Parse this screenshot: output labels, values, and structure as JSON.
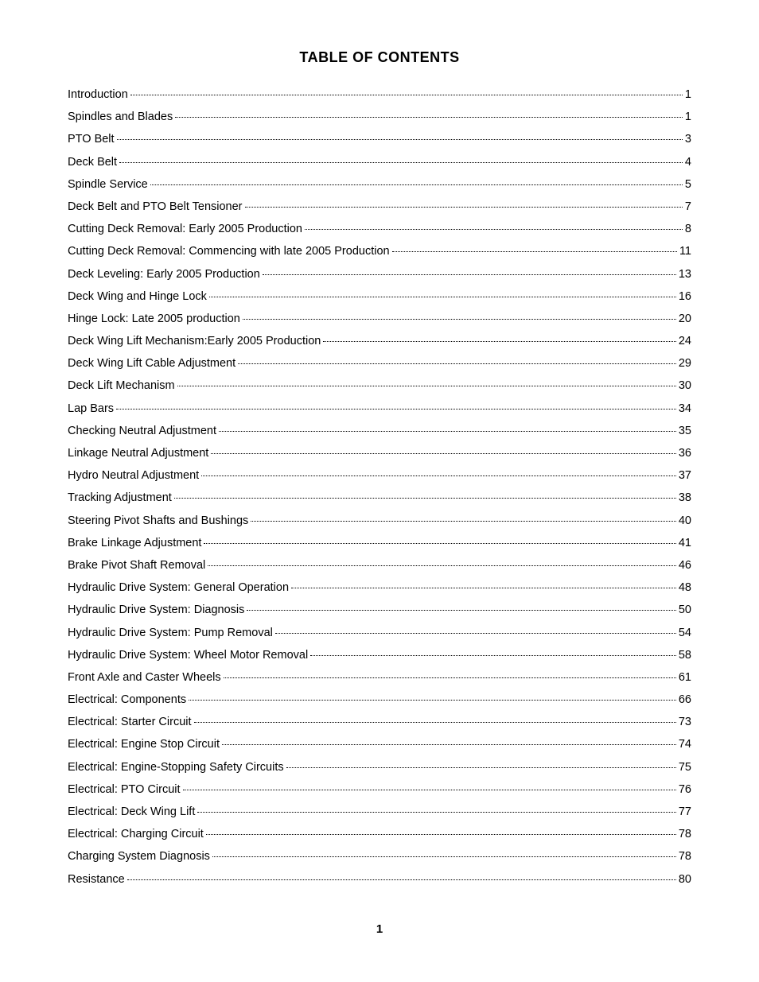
{
  "title": "TABLE OF CONTENTS",
  "page_number": "1",
  "toc": [
    {
      "label": "Introduction",
      "page": "1"
    },
    {
      "label": "Spindles and Blades",
      "page": "1"
    },
    {
      "label": "PTO Belt",
      "page": "3"
    },
    {
      "label": "Deck Belt",
      "page": "4"
    },
    {
      "label": "Spindle Service",
      "page": "5"
    },
    {
      "label": "Deck Belt and PTO Belt Tensioner",
      "page": "7"
    },
    {
      "label": "Cutting Deck Removal: Early 2005 Production",
      "page": "8"
    },
    {
      "label": "Cutting Deck Removal: Commencing with late 2005 Production",
      "page": "11"
    },
    {
      "label": "Deck Leveling: Early 2005 Production",
      "page": "13"
    },
    {
      "label": "Deck Wing and Hinge Lock",
      "page": "16"
    },
    {
      "label": "Hinge Lock: Late 2005 production",
      "page": "20"
    },
    {
      "label": "Deck Wing Lift Mechanism:Early 2005 Production",
      "page": "24"
    },
    {
      "label": "Deck Wing Lift Cable Adjustment",
      "page": "29"
    },
    {
      "label": "Deck Lift Mechanism",
      "page": "30"
    },
    {
      "label": "Lap Bars",
      "page": "34"
    },
    {
      "label": "Checking Neutral Adjustment",
      "page": "35"
    },
    {
      "label": "Linkage Neutral Adjustment",
      "page": "36"
    },
    {
      "label": "Hydro Neutral Adjustment",
      "page": "37"
    },
    {
      "label": "Tracking Adjustment",
      "page": "38"
    },
    {
      "label": "Steering Pivot Shafts and Bushings",
      "page": "40"
    },
    {
      "label": "Brake Linkage Adjustment",
      "page": "41"
    },
    {
      "label": "Brake Pivot Shaft Removal",
      "page": "46"
    },
    {
      "label": "Hydraulic Drive System: General Operation",
      "page": "48"
    },
    {
      "label": "Hydraulic Drive System: Diagnosis",
      "page": "50"
    },
    {
      "label": "Hydraulic Drive System: Pump Removal",
      "page": "54"
    },
    {
      "label": "Hydraulic Drive System: Wheel Motor Removal",
      "page": "58"
    },
    {
      "label": "Front Axle and Caster Wheels",
      "page": "61"
    },
    {
      "label": "Electrical: Components",
      "page": "66"
    },
    {
      "label": "Electrical: Starter Circuit",
      "page": "73"
    },
    {
      "label": "Electrical: Engine Stop Circuit",
      "page": "74"
    },
    {
      "label": "Electrical: Engine-Stopping Safety Circuits",
      "page": "75"
    },
    {
      "label": "Electrical: PTO Circuit",
      "page": "76"
    },
    {
      "label": "Electrical: Deck Wing Lift",
      "page": "77"
    },
    {
      "label": "Electrical: Charging Circuit",
      "page": "78"
    },
    {
      "label": "Charging System Diagnosis",
      "page": "78"
    },
    {
      "label": "Resistance",
      "page": "80"
    }
  ]
}
